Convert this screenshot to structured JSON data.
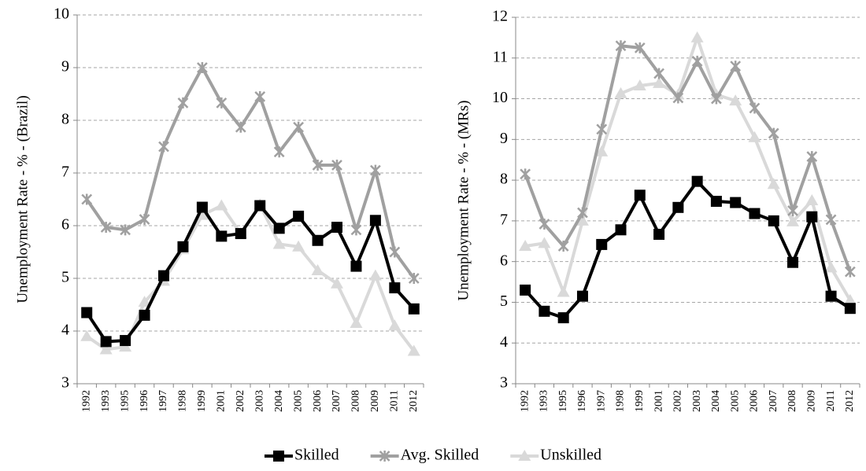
{
  "chart_data": [
    {
      "type": "line",
      "y_label": "Unemployment Rate - % - (Brazil)",
      "categories": [
        "1992",
        "1993",
        "1995",
        "1996",
        "1997",
        "1998",
        "1999",
        "2001",
        "2002",
        "2003",
        "2004",
        "2005",
        "2006",
        "2007",
        "2008",
        "2009",
        "2011",
        "2012"
      ],
      "series": [
        {
          "name": "Skilled",
          "color": "#000000",
          "marker": "square",
          "values": [
            4.35,
            3.8,
            3.82,
            4.3,
            5.05,
            5.6,
            6.35,
            5.8,
            5.85,
            6.38,
            5.95,
            6.18,
            5.72,
            5.97,
            5.23,
            6.1,
            4.82,
            4.42
          ]
        },
        {
          "name": "Avg. Skilled",
          "color": "#a0a0a0",
          "marker": "star",
          "values": [
            6.5,
            5.97,
            5.92,
            6.12,
            7.5,
            8.33,
            9.0,
            8.33,
            7.87,
            8.45,
            7.4,
            7.87,
            7.15,
            7.15,
            5.92,
            7.05,
            5.5,
            5.0
          ]
        },
        {
          "name": "Unskilled",
          "color": "#d9d9d9",
          "marker": "triangle",
          "values": [
            3.9,
            3.65,
            3.7,
            4.55,
            4.95,
            5.55,
            6.2,
            6.38,
            5.85,
            6.4,
            5.65,
            5.6,
            5.15,
            4.9,
            4.15,
            5.05,
            4.1,
            3.62
          ]
        }
      ],
      "ylim": [
        3,
        10
      ],
      "yticks": [
        3,
        4,
        5,
        6,
        7,
        8,
        9,
        10
      ],
      "grid": true
    },
    {
      "type": "line",
      "y_label": "Unemployment Rate - % - (MRs)",
      "categories": [
        "1992",
        "1993",
        "1995",
        "1996",
        "1997",
        "1998",
        "1999",
        "2001",
        "2002",
        "2003",
        "2004",
        "2005",
        "2006",
        "2007",
        "2008",
        "2009",
        "2011",
        "2012"
      ],
      "series": [
        {
          "name": "Skilled",
          "color": "#000000",
          "marker": "square",
          "values": [
            5.3,
            4.78,
            4.62,
            5.15,
            6.42,
            6.78,
            7.63,
            6.67,
            7.33,
            7.97,
            7.48,
            7.45,
            7.18,
            7.0,
            5.98,
            7.1,
            5.15,
            4.85
          ]
        },
        {
          "name": "Avg. Skilled",
          "color": "#a0a0a0",
          "marker": "star",
          "values": [
            8.15,
            6.92,
            6.38,
            7.2,
            9.25,
            11.3,
            11.25,
            10.62,
            10.02,
            10.92,
            10.0,
            10.8,
            9.77,
            9.15,
            7.25,
            8.58,
            7.03,
            5.75
          ]
        },
        {
          "name": "Unskilled",
          "color": "#d9d9d9",
          "marker": "triangle",
          "values": [
            6.38,
            6.45,
            5.25,
            7.0,
            8.7,
            10.13,
            10.32,
            10.38,
            10.1,
            11.5,
            10.1,
            9.95,
            9.05,
            7.9,
            6.98,
            7.5,
            5.85,
            5.05
          ]
        }
      ],
      "ylim": [
        3,
        12
      ],
      "yticks": [
        3,
        4,
        5,
        6,
        7,
        8,
        9,
        10,
        11,
        12
      ],
      "grid": true
    }
  ]
}
